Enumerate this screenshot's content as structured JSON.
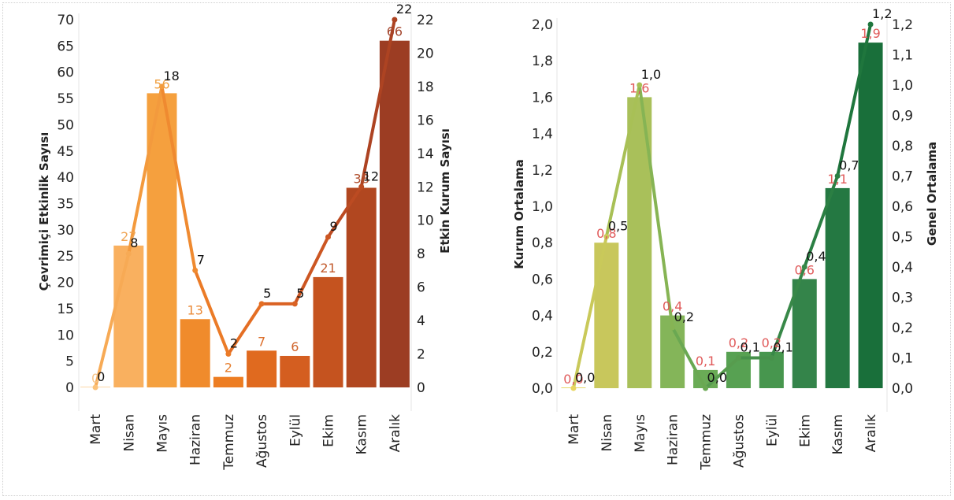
{
  "charts": [
    {
      "id": "left",
      "type": "bar+line",
      "categories": [
        "Mart",
        "Nisan",
        "Mayıs",
        "Haziran",
        "Temmuz",
        "Ağustos",
        "Eylül",
        "Ekim",
        "Kasım",
        "Aralık"
      ],
      "series": [
        {
          "name": "Çevrimiçi Etkinlik Sayısı",
          "type": "bar",
          "axis": "left",
          "values": [
            0,
            27,
            56,
            13,
            2,
            7,
            6,
            21,
            38,
            66
          ],
          "labels": [
            "0",
            "27",
            "56",
            "13",
            "2",
            "7",
            "6",
            "21",
            "38",
            "66"
          ],
          "colors": [
            "#fdd8a8",
            "#f9b05f",
            "#f5a03e",
            "#f08b2c",
            "#ed7d22",
            "#e06a1f",
            "#d45e20",
            "#c5531f",
            "#b14720",
            "#9c3d23"
          ],
          "label_colors": [
            "#f6c58a",
            "#f0a656",
            "#f0a040",
            "#ea8b3a",
            "#e57e2e",
            "#dc6e2a",
            "#d0652c",
            "#c25a2c",
            "#b04e2c",
            "#a3452c"
          ]
        },
        {
          "name": "Etkin Kurum Sayısı",
          "type": "line",
          "axis": "right",
          "values": [
            0,
            8,
            18,
            7,
            2,
            5,
            5,
            9,
            12,
            22
          ],
          "labels": [
            "0",
            "8",
            "18",
            "7",
            "2",
            "5",
            "5",
            "9",
            "12",
            "22"
          ],
          "colors": [
            "#fbc27a",
            "#f7aa55",
            "#f39a3d",
            "#ef8a30",
            "#eb7b27",
            "#e46e24",
            "#da6223",
            "#cc5622",
            "#bc4b22",
            "#ad4322"
          ]
        }
      ],
      "y_left": {
        "title": "Çevrimiçi Etkinlik Sayısı",
        "min": 0,
        "max": 70,
        "ticks": [
          "0",
          "5",
          "10",
          "15",
          "20",
          "25",
          "30",
          "35",
          "40",
          "45",
          "50",
          "55",
          "60",
          "65",
          "70"
        ]
      },
      "y_right": {
        "title": "Etkin Kurum Sayısı",
        "min": 0,
        "max": 22,
        "ticks": [
          "0",
          "2",
          "4",
          "6",
          "8",
          "10",
          "12",
          "14",
          "16",
          "18",
          "20",
          "22"
        ]
      }
    },
    {
      "id": "right",
      "type": "bar+line",
      "categories": [
        "Mart",
        "Nisan",
        "Mayıs",
        "Haziran",
        "Temmuz",
        "Ağustos",
        "Eylül",
        "Ekim",
        "Kasım",
        "Aralık"
      ],
      "series": [
        {
          "name": "Kurum Ortalama",
          "type": "bar",
          "axis": "left",
          "values": [
            0.0,
            0.8,
            1.6,
            0.4,
            0.1,
            0.2,
            0.2,
            0.6,
            1.1,
            1.9
          ],
          "labels": [
            "0,0",
            "0,8",
            "1,6",
            "0,4",
            "0,1",
            "0,2",
            "0,2",
            "0,6",
            "1,1",
            "1,9"
          ],
          "colors": [
            "#e7d96a",
            "#c8c75c",
            "#a9c05a",
            "#84b559",
            "#6aab56",
            "#57a152",
            "#47964e",
            "#34844a",
            "#247842",
            "#196f3a"
          ],
          "label_color": "#e05a5a"
        },
        {
          "name": "Genel Ortalama",
          "type": "line",
          "axis": "right",
          "values": [
            0.0,
            0.5,
            1.0,
            0.2,
            0.0,
            0.1,
            0.1,
            0.4,
            0.7,
            1.2
          ],
          "labels": [
            "0,0",
            "0,5",
            "1,0",
            "0,2",
            "0,0",
            "0,1",
            "0,1",
            "0,4",
            "0,7",
            "1,2"
          ],
          "colors": [
            "#e8d55e",
            "#c9c95a",
            "#a8c056",
            "#86b454",
            "#6aa852",
            "#579c4e",
            "#47914b",
            "#388848",
            "#2b7f43",
            "#1f763d"
          ]
        }
      ],
      "y_left": {
        "title": "Kurum Ortalama",
        "min": 0,
        "max": 2.0,
        "ticks": [
          "0,0",
          "0,2",
          "0,4",
          "0,6",
          "0,8",
          "1,0",
          "1,2",
          "1,4",
          "1,6",
          "1,8",
          "2,0"
        ]
      },
      "y_right": {
        "title": "Genel Ortalama",
        "min": 0,
        "max": 1.2,
        "ticks": [
          "0,0",
          "0,1",
          "0,2",
          "0,3",
          "0,4",
          "0,5",
          "0,6",
          "0,7",
          "0,8",
          "0,9",
          "1,0",
          "1,1",
          "1,2"
        ]
      }
    }
  ]
}
